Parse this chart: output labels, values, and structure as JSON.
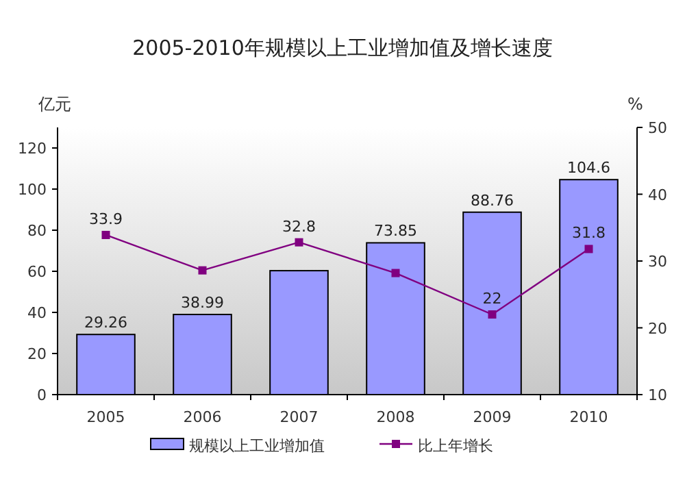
{
  "chart_data": {
    "type": "bar",
    "title": "2005-2010年规模以上工业增加值及增长速度",
    "ylabel": "亿元",
    "y2label": "%",
    "categories": [
      "2005",
      "2006",
      "2007",
      "2008",
      "2009",
      "2010"
    ],
    "series": [
      {
        "name": "规模以上工业增加值",
        "color": "#9999ff",
        "values": [
          29.26,
          38.99,
          60.3,
          73.85,
          88.76,
          104.6
        ],
        "value_labels": [
          "29.26",
          "38.99",
          null,
          "73.85",
          "88.76",
          "104.6"
        ]
      },
      {
        "name": "比上年增长",
        "type": "line",
        "axis": "y2",
        "color": "#800080",
        "marker": "square",
        "values": [
          33.9,
          28.6,
          32.8,
          28.2,
          22,
          31.8
        ],
        "value_labels": [
          "33.9",
          null,
          "32.8",
          null,
          "22",
          "31.8"
        ]
      }
    ],
    "ylim": [
      0,
      130
    ],
    "yticks": [
      0,
      20,
      40,
      60,
      80,
      100,
      120
    ],
    "y2lim": [
      10,
      50
    ],
    "y2ticks": [
      10,
      20,
      30,
      40,
      50
    ],
    "legend": "bottom"
  }
}
